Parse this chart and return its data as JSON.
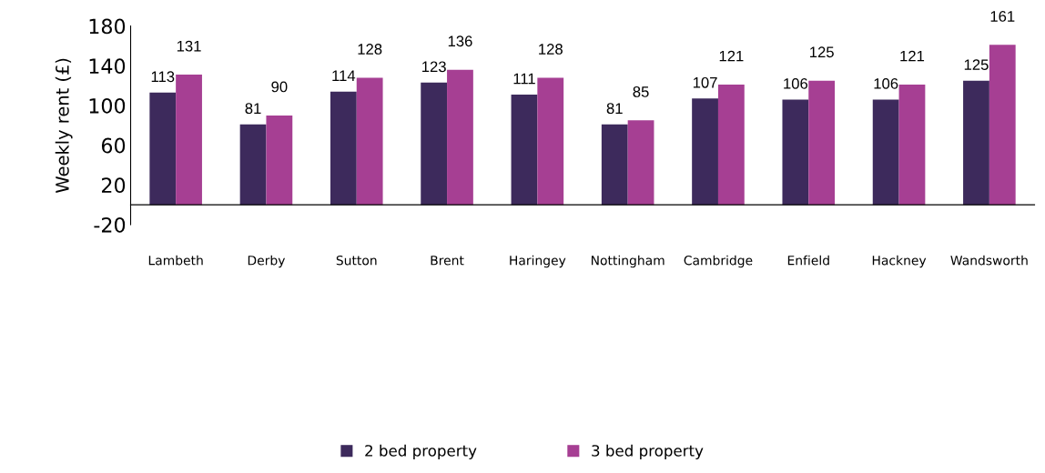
{
  "chart_data": {
    "type": "bar",
    "ylabel": "Weekly rent (£)",
    "categories": [
      "Lambeth",
      "Derby",
      "Sutton",
      "Brent",
      "Haringey",
      "Nottingham",
      "Cambridge",
      "Enfield",
      "Hackney",
      "Wandsworth"
    ],
    "series": [
      {
        "name": "2 bed property",
        "color": "#3d2a5c",
        "values": [
          113,
          81,
          114,
          123,
          111,
          81,
          107,
          106,
          106,
          125
        ]
      },
      {
        "name": "3 bed property",
        "color": "#a63f93",
        "values": [
          131,
          90,
          128,
          136,
          128,
          85,
          121,
          125,
          121,
          161
        ]
      }
    ],
    "ylim": [
      -20,
      180
    ],
    "yticks": [
      -20,
      20,
      60,
      100,
      140,
      180
    ],
    "data_labels": true,
    "grid": false,
    "legend": "bottom"
  }
}
